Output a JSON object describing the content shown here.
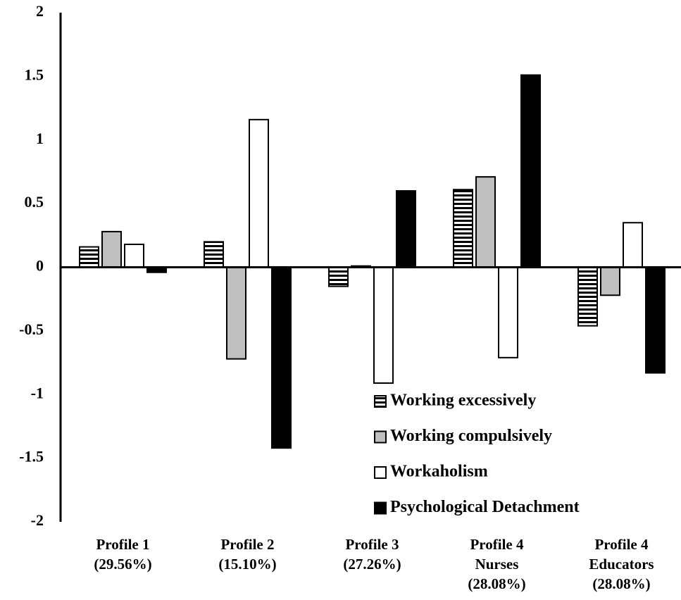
{
  "chart_data": {
    "type": "bar",
    "categories": [
      [
        "Profile 1",
        "(29.56%)"
      ],
      [
        "Profile 2",
        "(15.10%)"
      ],
      [
        "Profile 3",
        "(27.26%)"
      ],
      [
        "Profile 4",
        "Nurses",
        "(28.08%)"
      ],
      [
        "Profile 4",
        "Educators",
        "(28.08%)"
      ]
    ],
    "series": [
      {
        "name": "Working excessively",
        "color": "#ffffff",
        "hatch": "horizontal",
        "values": [
          0.16,
          0.2,
          -0.15,
          0.61,
          -0.46
        ]
      },
      {
        "name": "Working compulsively",
        "color": "#bfbfbf",
        "values": [
          0.28,
          -0.72,
          0.01,
          0.71,
          -0.22
        ]
      },
      {
        "name": "Workaholism",
        "color": "#ffffff",
        "values": [
          0.18,
          1.16,
          -0.91,
          -0.71,
          0.35
        ]
      },
      {
        "name": "Psychological Detachment",
        "color": "#000000",
        "values": [
          -0.04,
          -1.42,
          0.6,
          1.51,
          -0.83
        ]
      }
    ],
    "ylim": [
      -2,
      2
    ],
    "yticks": [
      2,
      1.5,
      1,
      0.5,
      0,
      -0.5,
      -1,
      -1.5,
      -2
    ],
    "grid": false,
    "legend": "lower-right"
  }
}
